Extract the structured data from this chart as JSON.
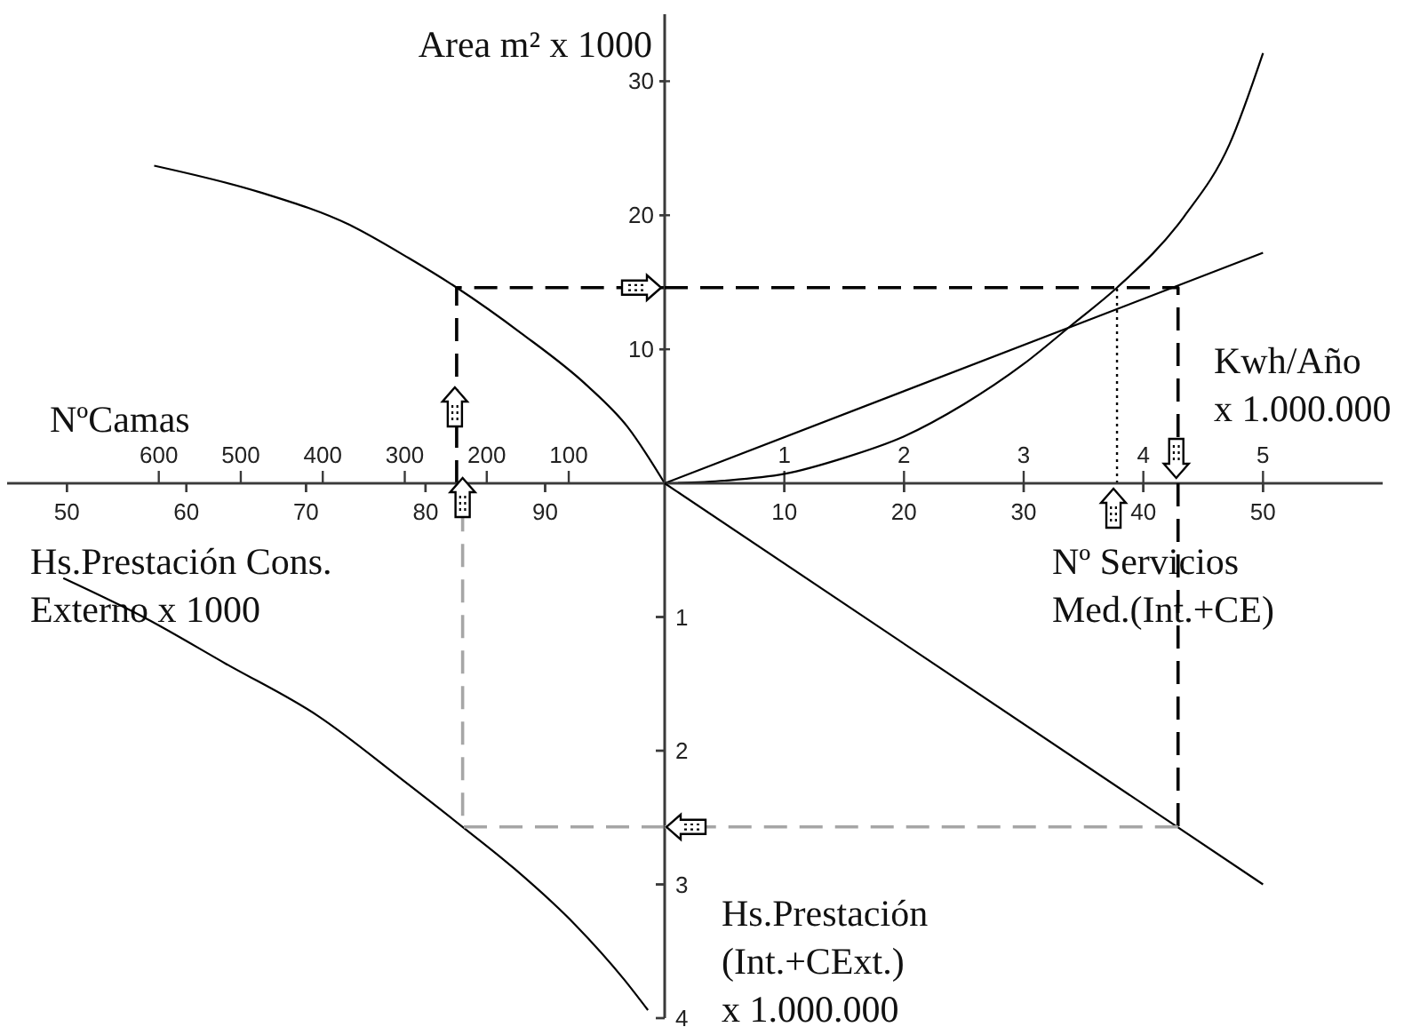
{
  "chart_data": [
    {
      "type": "line",
      "xlabel": "Hs.Prestación Cons.\nExterno x 1000",
      "x2label": "NºCamas",
      "xlim": [
        45,
        100
      ],
      "xticks": [
        50,
        60,
        70,
        80,
        90
      ],
      "x2lim": [
        785,
        -17
      ],
      "x2ticks": [
        600,
        500,
        400,
        300,
        200,
        100
      ],
      "ylim": [
        0,
        35
      ],
      "yticks": [
        10,
        20,
        30
      ],
      "tick_labels": "x",
      "series": [
        {
          "color": "#000000",
          "line_style": "solid",
          "x": [
            57.3,
            66.2,
            73.6,
            78.6,
            82.6,
            88,
            93.5,
            96.9,
            100
          ],
          "values": [
            23.7,
            21.7,
            19.3,
            16.8,
            14.6,
            11.2,
            7.3,
            4.2,
            0
          ]
        },
        {
          "color": "#000000",
          "line_style": "dashed",
          "x": [
            82.6,
            82.6,
            100
          ],
          "values": [
            0,
            14.6,
            14.6
          ]
        }
      ]
    },
    {
      "type": "line",
      "ylabel": "Area m² x 1000",
      "xlabel": "Nº Servicios\nMed.(Int.+CE)",
      "x2label": "Kwh/Año\nx 1.000.000",
      "xlim": [
        0,
        60
      ],
      "xticks": [
        10,
        20,
        30,
        40,
        50
      ],
      "x2lim": [
        0,
        6
      ],
      "x2ticks": [
        1,
        2,
        3,
        4,
        5
      ],
      "ylim": [
        0,
        35
      ],
      "yticks": [
        10,
        20,
        30
      ],
      "series": [
        {
          "color": "#000000",
          "line_style": "solid",
          "x": [
            0,
            50
          ],
          "values": [
            0,
            17.2
          ]
        },
        {
          "color": "#000000",
          "line_style": "solid",
          "x": [
            0,
            5,
            10,
            15,
            20,
            25,
            30,
            34,
            37.8,
            43.4,
            47.2,
            50
          ],
          "values": [
            0,
            0.2,
            0.7,
            1.9,
            3.5,
            5.9,
            8.9,
            11.8,
            14.6,
            19.9,
            25.3,
            32.1
          ]
        },
        {
          "color": "#000000",
          "line_style": "dashed",
          "x": [
            0,
            42.9,
            42.9
          ],
          "values": [
            14.6,
            14.6,
            0
          ]
        },
        {
          "color": "#000000",
          "line_style": "dotted",
          "x": [
            37.8,
            37.8
          ],
          "values": [
            0,
            14.6
          ]
        }
      ]
    },
    {
      "type": "line",
      "xlim": [
        45,
        100
      ],
      "xticks": [
        50,
        60,
        70,
        80,
        90
      ],
      "ylim": [
        4,
        0
      ],
      "yticks": [
        1,
        2,
        3,
        4
      ],
      "tick_labels": false,
      "series": [
        {
          "color": "#000000",
          "line_style": "solid",
          "x": [
            49.7,
            56.6,
            63.3,
            71,
            78.1,
            83.1,
            87.4,
            92.5,
            96.6,
            98.6
          ],
          "values": [
            0.71,
            1.01,
            1.35,
            1.74,
            2.22,
            2.57,
            2.88,
            3.3,
            3.71,
            3.94
          ]
        },
        {
          "color": "#a6a6a6",
          "line_style": "dashed",
          "x": [
            100,
            83.1,
            83.1
          ],
          "values": [
            2.57,
            2.57,
            0
          ]
        }
      ]
    },
    {
      "type": "line",
      "ylabel": "Hs.Prestación\n(Int.+CExt.)\nx 1.000.000",
      "xlim": [
        0,
        60
      ],
      "xticks": [
        10,
        20,
        30,
        40,
        50
      ],
      "ylim": [
        4,
        0
      ],
      "yticks": [
        1,
        2,
        3,
        4
      ],
      "tick_labels": "y",
      "series": [
        {
          "color": "#000000",
          "line_style": "solid",
          "x": [
            0,
            50
          ],
          "values": [
            0,
            3
          ]
        },
        {
          "color": "#000000",
          "line_style": "dashed",
          "x": [
            42.9,
            42.9
          ],
          "values": [
            0,
            2.57
          ]
        },
        {
          "color": "#a6a6a6",
          "line_style": "dashed",
          "x": [
            42.9,
            0
          ],
          "values": [
            2.57,
            2.57
          ]
        }
      ]
    }
  ]
}
